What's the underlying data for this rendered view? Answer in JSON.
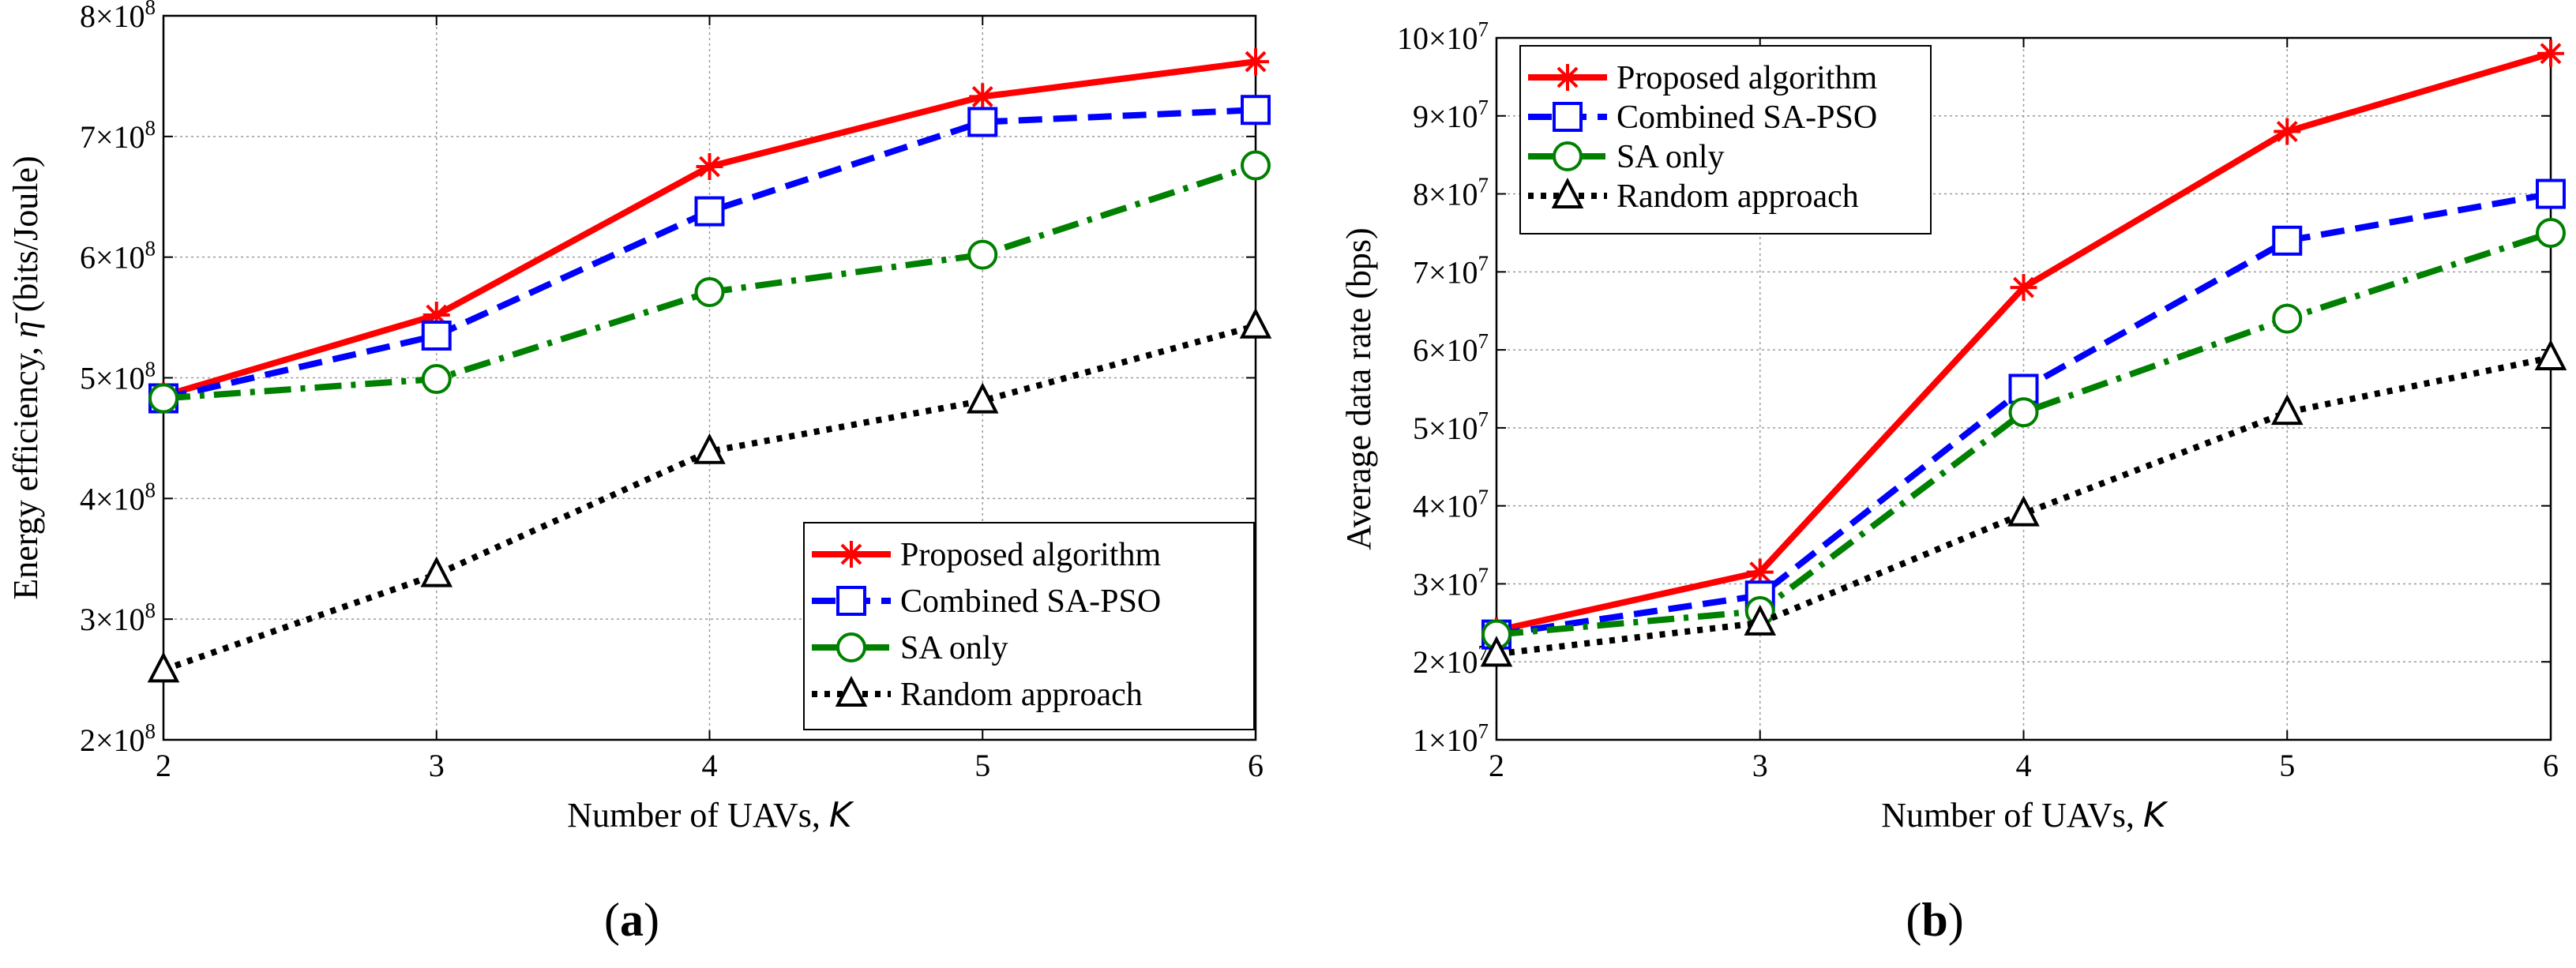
{
  "chart_data": [
    {
      "type": "line",
      "panel_label": "a",
      "x": [
        2,
        3,
        4,
        5,
        6
      ],
      "xlim": [
        2,
        6
      ],
      "ylim": [
        200000000,
        800000000
      ],
      "xticks": [
        "2",
        "3",
        "4",
        "5",
        "6"
      ],
      "yticks": [
        {
          "mant": "2",
          "exp": "8",
          "value": 200000000
        },
        {
          "mant": "3",
          "exp": "8",
          "value": 300000000
        },
        {
          "mant": "4",
          "exp": "8",
          "value": 400000000
        },
        {
          "mant": "5",
          "exp": "8",
          "value": 500000000
        },
        {
          "mant": "6",
          "exp": "8",
          "value": 600000000
        },
        {
          "mant": "7",
          "exp": "8",
          "value": 700000000
        },
        {
          "mant": "8",
          "exp": "8",
          "value": 800000000
        }
      ],
      "xlabel": "Number of UAVs, ",
      "xlabel_var": "K",
      "ylabel": "Energy efficiency, ",
      "ylabel_var": "η̄",
      "ylabel_unit": " (bits/Joule)",
      "grid": true,
      "legend_position": "bottom-right",
      "series": [
        {
          "name": "Proposed algorithm",
          "color": "#ff0000",
          "dash": "solid",
          "marker": "asterisk",
          "values": [
            485000000,
            552000000,
            675000000,
            733000000,
            762000000
          ]
        },
        {
          "name": "Combined SA-PSO",
          "color": "#0000ff",
          "dash": "dashed",
          "marker": "square",
          "values": [
            483000000,
            535000000,
            638000000,
            712000000,
            722000000
          ]
        },
        {
          "name": "SA only",
          "color": "#008000",
          "dash": "dashdot",
          "marker": "circle",
          "values": [
            483000000,
            499000000,
            571000000,
            602000000,
            676000000
          ]
        },
        {
          "name": "Random approach",
          "color": "#000000",
          "dash": "dotted",
          "marker": "triangle",
          "values": [
            258000000,
            337000000,
            439000000,
            481000000,
            543000000
          ]
        }
      ]
    },
    {
      "type": "line",
      "panel_label": "b",
      "x": [
        2,
        3,
        4,
        5,
        6
      ],
      "xlim": [
        2,
        6
      ],
      "ylim": [
        10000000,
        100000000
      ],
      "xticks": [
        "2",
        "3",
        "4",
        "5",
        "6"
      ],
      "yticks": [
        {
          "mant": "1",
          "exp": "7",
          "value": 10000000
        },
        {
          "mant": "2",
          "exp": "7",
          "value": 20000000
        },
        {
          "mant": "3",
          "exp": "7",
          "value": 30000000
        },
        {
          "mant": "4",
          "exp": "7",
          "value": 40000000
        },
        {
          "mant": "5",
          "exp": "7",
          "value": 50000000
        },
        {
          "mant": "6",
          "exp": "7",
          "value": 60000000
        },
        {
          "mant": "7",
          "exp": "7",
          "value": 70000000
        },
        {
          "mant": "8",
          "exp": "7",
          "value": 80000000
        },
        {
          "mant": "9",
          "exp": "7",
          "value": 90000000
        },
        {
          "mant": "10",
          "exp": "7",
          "value": 100000000
        }
      ],
      "xlabel": "Number of UAVs, ",
      "xlabel_var": "K",
      "ylabel": "Average data rate (bps)",
      "ylabel_var": "",
      "ylabel_unit": "",
      "grid": true,
      "legend_position": "top-left",
      "series": [
        {
          "name": "Proposed algorithm",
          "color": "#ff0000",
          "dash": "solid",
          "marker": "asterisk",
          "values": [
            24000000,
            31500000,
            68000000,
            88000000,
            98000000
          ]
        },
        {
          "name": "Combined SA-PSO",
          "color": "#0000ff",
          "dash": "dashed",
          "marker": "square",
          "values": [
            23500000,
            28500000,
            55000000,
            74000000,
            80000000
          ]
        },
        {
          "name": "SA only",
          "color": "#008000",
          "dash": "dashdot",
          "marker": "circle",
          "values": [
            23500000,
            26500000,
            52000000,
            64000000,
            75000000
          ]
        },
        {
          "name": "Random approach",
          "color": "#000000",
          "dash": "dotted",
          "marker": "triangle",
          "values": [
            21000000,
            25000000,
            39000000,
            52000000,
            59000000
          ]
        }
      ]
    }
  ],
  "times_sign": "×",
  "ten": "10",
  "paren_open": "(",
  "paren_close": ")"
}
